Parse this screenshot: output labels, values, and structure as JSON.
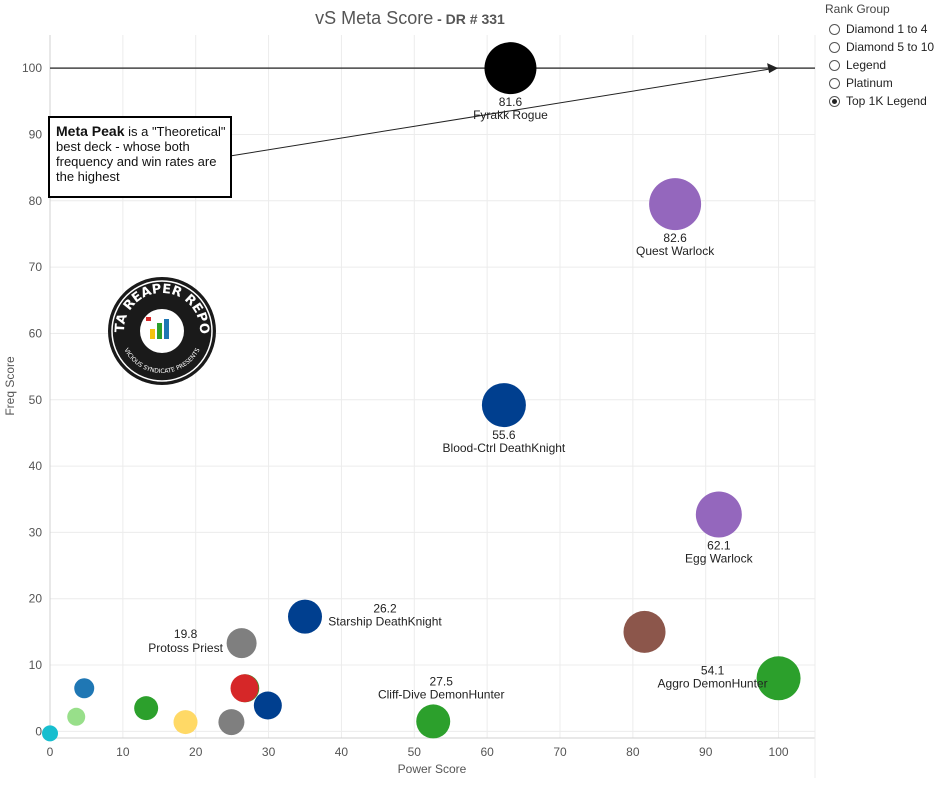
{
  "title": "vS Meta Score",
  "subtitle": "DR # 331",
  "legend": {
    "title": "Rank Group",
    "items": [
      {
        "label": "Diamond 1 to 4",
        "checked": false
      },
      {
        "label": "Diamond 5 to 10",
        "checked": false
      },
      {
        "label": "Legend",
        "checked": false
      },
      {
        "label": "Platinum",
        "checked": false
      },
      {
        "label": "Top 1K Legend",
        "checked": true
      }
    ]
  },
  "callout": {
    "bold": "Meta Peak",
    "text": " is a \"Theoretical\" best deck - whose both frequency and win rates are the highest"
  },
  "logo": {
    "text": "DATA REAPER REPORT",
    "subtext": "VICIOUS SYNDICATE PRESENTS"
  },
  "chart_data": {
    "type": "scatter",
    "title": "vS Meta Score - DR # 331",
    "xlabel": "Power Score",
    "ylabel": "Freq Score",
    "xlim": [
      0,
      105
    ],
    "ylim": [
      -1,
      105
    ],
    "xticks": [
      0,
      10,
      20,
      30,
      40,
      50,
      60,
      70,
      80,
      90,
      100
    ],
    "yticks": [
      0,
      10,
      20,
      30,
      40,
      50,
      60,
      70,
      80,
      90,
      100
    ],
    "reference_line": {
      "y": 100
    },
    "points": [
      {
        "name": "Fyrakk Rogue",
        "score": "81.6",
        "x": 63.2,
        "y": 100,
        "size": 26,
        "color": "#000000",
        "label_pos": "below"
      },
      {
        "name": "Quest Warlock",
        "score": "82.6",
        "x": 85.8,
        "y": 79.5,
        "size": 26,
        "color": "#9467bd",
        "label_pos": "below"
      },
      {
        "name": "Blood-Ctrl DeathKnight",
        "score": "55.6",
        "x": 62.3,
        "y": 49.2,
        "size": 22,
        "color": "#003f8f",
        "label_pos": "below"
      },
      {
        "name": "Egg Warlock",
        "score": "62.1",
        "x": 91.8,
        "y": 32.7,
        "size": 23,
        "color": "#9467bd",
        "label_pos": "below"
      },
      {
        "name": "Starship DeathKnight",
        "score": "26.2",
        "x": 35.0,
        "y": 17.3,
        "size": 17,
        "color": "#003f8f",
        "label_pos": "right"
      },
      {
        "name": "Protoss Priest",
        "score": "19.8",
        "x": 26.3,
        "y": 13.3,
        "size": 15,
        "color": "#7f7f7f",
        "label_pos": "left"
      },
      {
        "name": "Cliff-Dive DemonHunter",
        "score": "27.5",
        "x": 52.6,
        "y": 1.5,
        "size": 17,
        "color": "#2ca02c",
        "label_pos": "above"
      },
      {
        "name": "Aggro DemonHunter",
        "score": "54.1",
        "x": 100.0,
        "y": 8.0,
        "size": 22,
        "color": "#2ca02c",
        "label_pos": "left"
      },
      {
        "name": "",
        "score": "",
        "x": 81.6,
        "y": 15.0,
        "size": 21,
        "color": "#8c564b",
        "label_pos": "none"
      },
      {
        "name": "",
        "score": "",
        "x": 26.8,
        "y": 6.5,
        "size": 14,
        "color": "#2ca02c",
        "label_pos": "none"
      },
      {
        "name": "",
        "score": "",
        "x": 26.7,
        "y": 6.5,
        "size": 14,
        "color": "#d62728",
        "label_pos": "none"
      },
      {
        "name": "",
        "score": "",
        "x": 29.9,
        "y": 3.9,
        "size": 14,
        "color": "#003f8f",
        "label_pos": "none"
      },
      {
        "name": "",
        "score": "",
        "x": 24.9,
        "y": 1.4,
        "size": 13,
        "color": "#7f7f7f",
        "label_pos": "none"
      },
      {
        "name": "",
        "score": "",
        "x": 18.6,
        "y": 1.4,
        "size": 12,
        "color": "#ffd966",
        "label_pos": "none"
      },
      {
        "name": "",
        "score": "",
        "x": 13.2,
        "y": 3.5,
        "size": 12,
        "color": "#2ca02c",
        "label_pos": "none"
      },
      {
        "name": "",
        "score": "",
        "x": 4.7,
        "y": 6.5,
        "size": 10,
        "color": "#1f77b4",
        "label_pos": "none"
      },
      {
        "name": "",
        "score": "",
        "x": 3.6,
        "y": 2.2,
        "size": 9,
        "color": "#98df8a",
        "label_pos": "none"
      },
      {
        "name": "",
        "score": "",
        "x": 0.0,
        "y": -0.3,
        "size": 8,
        "color": "#17becf",
        "label_pos": "none"
      }
    ]
  }
}
